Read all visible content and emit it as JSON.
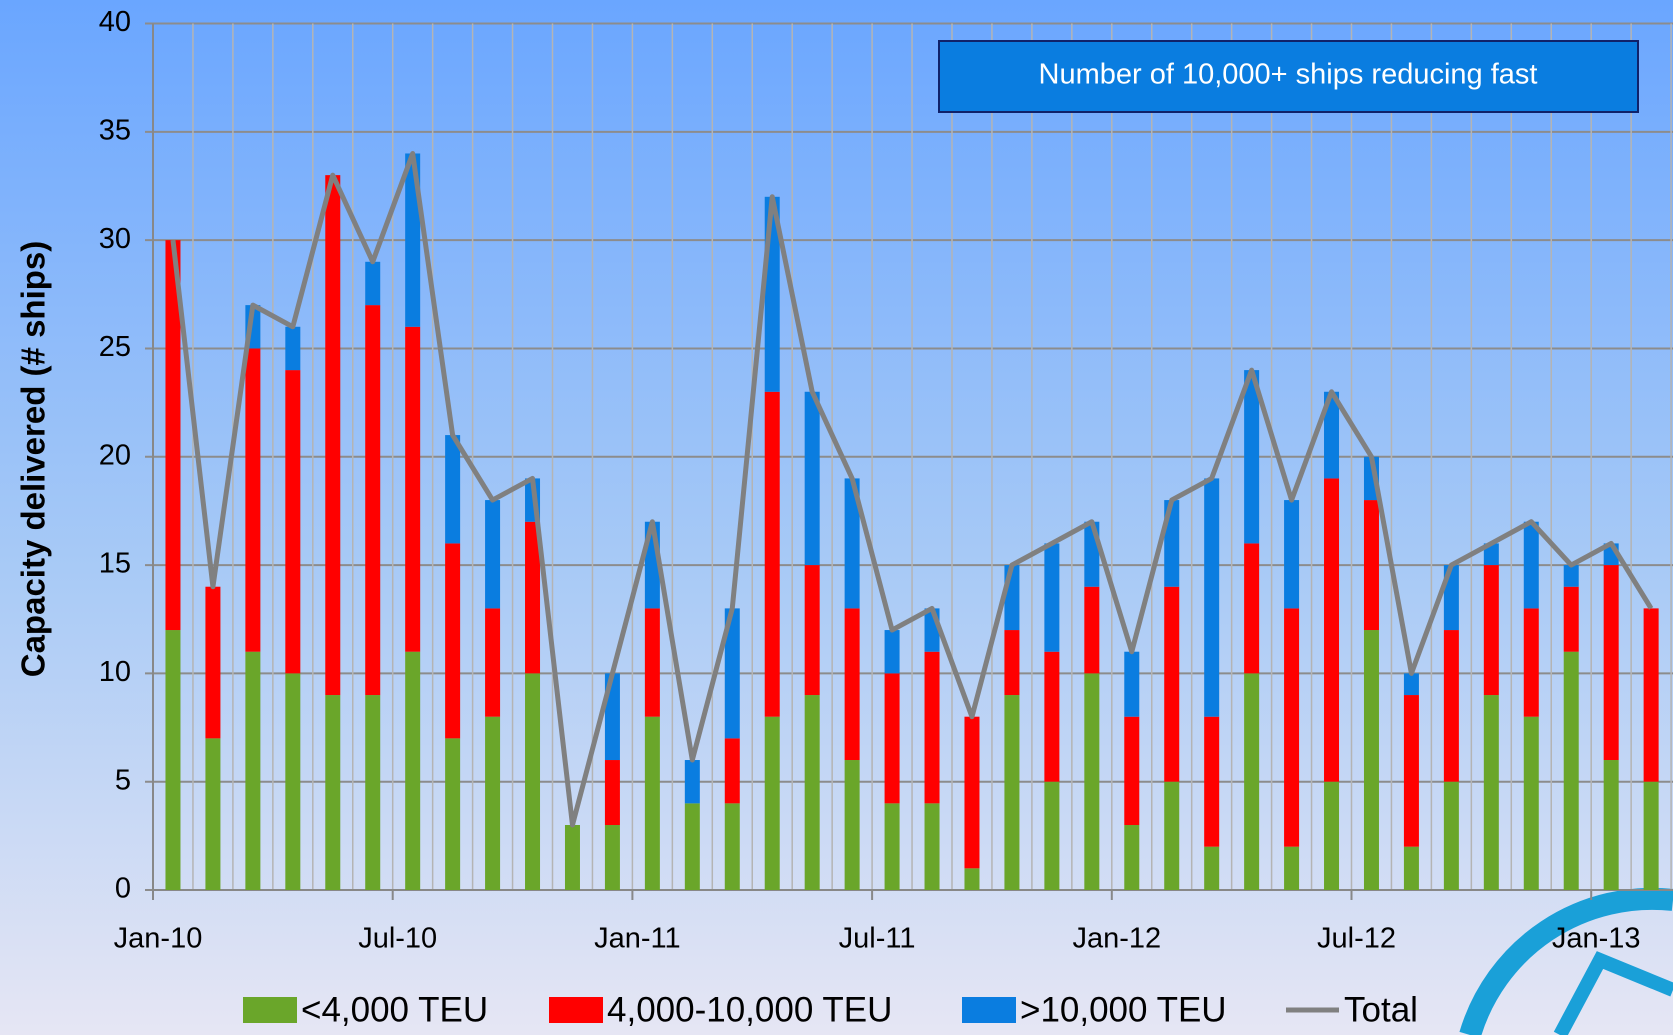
{
  "chart_data": {
    "type": "bar",
    "stacked": true,
    "y_axis_label": "Capacity delivered (# ships)",
    "annotation": "Number of 10,000+ ships reducing fast",
    "categories": [
      "Jan-10",
      null,
      null,
      null,
      null,
      null,
      "Jul-10",
      null,
      null,
      null,
      null,
      null,
      "Jan-11",
      null,
      null,
      null,
      null,
      null,
      "Jul-11",
      null,
      null,
      null,
      null,
      null,
      "Jan-12",
      null,
      null,
      null,
      null,
      null,
      "Jul-12",
      null,
      null,
      null,
      null,
      null,
      "Jan-13",
      null
    ],
    "series": [
      {
        "name": "<4,000 TEU",
        "color": "#6aa62a",
        "kind": "bar",
        "values": [
          12,
          7,
          11,
          10,
          9,
          9,
          11,
          7,
          8,
          10,
          3,
          3,
          8,
          4,
          4,
          8,
          9,
          6,
          4,
          4,
          1,
          9,
          5,
          10,
          3,
          5,
          2,
          10,
          2,
          5,
          12,
          2,
          5,
          9,
          8,
          11,
          6,
          5
        ]
      },
      {
        "name": "4,000-10,000 TEU",
        "color": "#ff0000",
        "kind": "bar",
        "values": [
          18,
          7,
          14,
          14,
          24,
          18,
          15,
          9,
          5,
          7,
          0,
          3,
          5,
          0,
          3,
          15,
          6,
          7,
          6,
          7,
          7,
          3,
          6,
          4,
          5,
          9,
          6,
          6,
          11,
          14,
          6,
          7,
          7,
          6,
          5,
          3,
          9,
          8
        ]
      },
      {
        "name": ">10,000 TEU",
        "color": "#0a7de0",
        "kind": "bar",
        "values": [
          0,
          0,
          2,
          2,
          0,
          2,
          8,
          5,
          5,
          2,
          0,
          4,
          4,
          2,
          6,
          9,
          8,
          6,
          2,
          2,
          0,
          3,
          5,
          3,
          3,
          4,
          11,
          8,
          5,
          4,
          2,
          1,
          3,
          1,
          4,
          1,
          1,
          0
        ]
      },
      {
        "name": "Total",
        "color": "#808080",
        "kind": "line",
        "values": [
          30,
          14,
          27,
          26,
          33,
          29,
          34,
          21,
          18,
          19,
          3,
          10,
          17,
          6,
          13,
          32,
          23,
          19,
          12,
          13,
          8,
          15,
          16,
          17,
          11,
          18,
          19,
          24,
          18,
          23,
          20,
          10,
          15,
          16,
          17,
          15,
          16,
          13
        ]
      }
    ],
    "ylim": [
      0,
      40
    ],
    "yticks": [
      0,
      5,
      10,
      15,
      20,
      25,
      30,
      35,
      40
    ],
    "grid": true
  }
}
